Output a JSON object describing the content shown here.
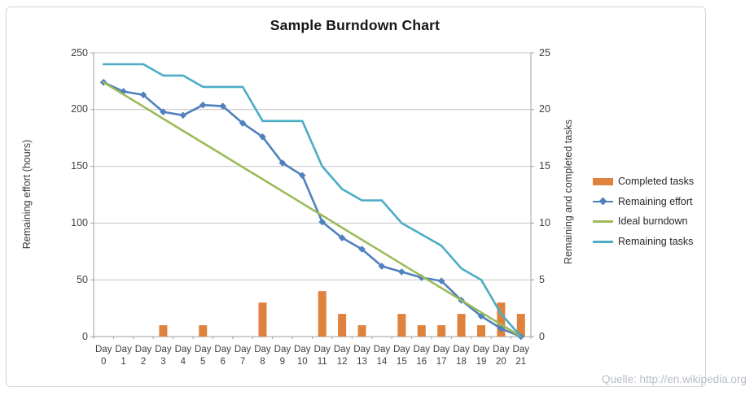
{
  "source_note": "Quelle: http://en.wikipedia.org",
  "colors": {
    "completed_tasks": "#DE823D",
    "remaining_effort": "#4F81BD",
    "ideal_burndown": "#9BBB59",
    "remaining_tasks": "#4BACC6",
    "gridline": "#C6C6C6",
    "axis_line": "#A0A0A0",
    "tick_text": "#3F3F3F",
    "frame_border": "#D4D4D4",
    "watermark_text": "#ABB1BE"
  },
  "chart_data": {
    "type": "combo",
    "title": "Sample Burndown Chart",
    "categories": [
      "Day 0",
      "Day 1",
      "Day 2",
      "Day 3",
      "Day 4",
      "Day 5",
      "Day 6",
      "Day 7",
      "Day 8",
      "Day 9",
      "Day 10",
      "Day 11",
      "Day 12",
      "Day 13",
      "Day 14",
      "Day 15",
      "Day 16",
      "Day 17",
      "Day 18",
      "Day 19",
      "Day 20",
      "Day 21"
    ],
    "left_axis": {
      "label": "Remaining effort (hours)",
      "min": 0,
      "max": 250,
      "ticks": [
        0,
        50,
        100,
        150,
        200,
        250
      ]
    },
    "right_axis": {
      "label": "Remaining and  completed tasks",
      "min": 0,
      "max": 25,
      "ticks": [
        0,
        5,
        10,
        15,
        20,
        25
      ]
    },
    "grid": "horizontal-only",
    "legend_position": "right",
    "series": [
      {
        "name": "Completed tasks",
        "type": "bar",
        "axis": "right",
        "color": "#DE823D",
        "values": [
          0,
          0,
          0,
          1,
          0,
          1,
          0,
          0,
          3,
          0,
          0,
          4,
          2,
          1,
          0,
          2,
          1,
          1,
          2,
          1,
          3,
          2
        ]
      },
      {
        "name": "Remaining effort",
        "type": "line",
        "axis": "left",
        "color": "#4F81BD",
        "marker": "diamond",
        "values": [
          224,
          216,
          213,
          198,
          195,
          204,
          203,
          188,
          176,
          153,
          142,
          101,
          87,
          77,
          62,
          57,
          52,
          49,
          32,
          18,
          7,
          0
        ]
      },
      {
        "name": "Ideal burndown",
        "type": "line",
        "axis": "left",
        "color": "#9BBB59",
        "marker": "none",
        "values": [
          224,
          213.3,
          202.7,
          192,
          181.3,
          170.7,
          160,
          149.3,
          138.7,
          128,
          117.3,
          106.7,
          96,
          85.3,
          74.7,
          64,
          53.3,
          42.7,
          32,
          21.3,
          10.7,
          0
        ]
      },
      {
        "name": "Remaining tasks",
        "type": "line",
        "axis": "right",
        "color": "#4BACC6",
        "marker": "none",
        "values": [
          24,
          24,
          24,
          23,
          23,
          22,
          22,
          22,
          19,
          19,
          19,
          15,
          13,
          12,
          12,
          10,
          9,
          8,
          6,
          5,
          2,
          0
        ]
      }
    ]
  }
}
